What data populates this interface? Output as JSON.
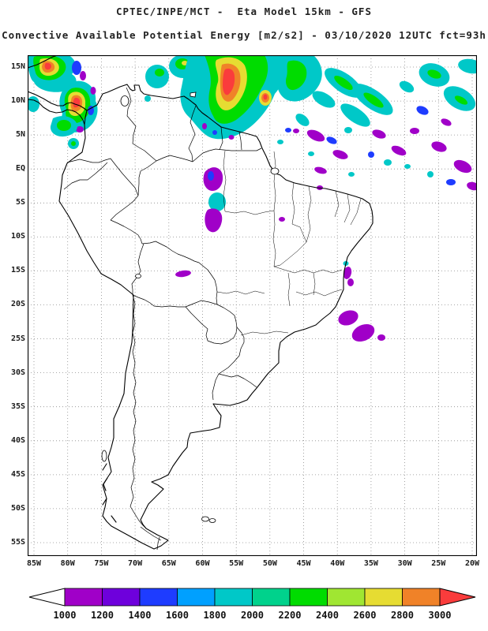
{
  "header": {
    "line1": "CPTEC/INPE/MCT -  Eta Model 15km - GFS",
    "line2": "Convective Available Potential Energy [m2/s2] - 03/10/2020 12UTC fct=93h"
  },
  "axes": {
    "lat_labels": [
      "15N",
      "10N",
      "5N",
      "EQ",
      "5S",
      "10S",
      "15S",
      "20S",
      "25S",
      "30S",
      "35S",
      "40S",
      "45S",
      "50S",
      "55S"
    ],
    "lon_labels": [
      "85W",
      "80W",
      "75W",
      "70W",
      "65W",
      "60W",
      "55W",
      "50W",
      "45W",
      "40W",
      "35W",
      "30W",
      "25W",
      "20W"
    ]
  },
  "colorbar": {
    "tick_labels": [
      "1000",
      "1200",
      "1400",
      "1600",
      "1800",
      "2000",
      "2200",
      "2400",
      "2600",
      "2800",
      "3000"
    ],
    "segment_colors": [
      "#A000C8",
      "#6E00DC",
      "#1E3CFF",
      "#00A0FF",
      "#00C8C8",
      "#00D28C",
      "#00DC00",
      "#A0E632",
      "#E6DC32",
      "#F08228"
    ],
    "left_arrow_color": "#FFFFFF",
    "right_arrow_color": "#FA3C3C"
  },
  "chart_data": {
    "type": "heatmap",
    "title": "Convective Available Potential Energy [m2/s2]",
    "source": "CPTEC/INPE/MCT - Eta Model 15km - GFS",
    "valid": "03/10/2020 12UTC fct=93h",
    "units": "m2/s2",
    "x_ticks": [
      "85W",
      "80W",
      "75W",
      "70W",
      "65W",
      "60W",
      "55W",
      "50W",
      "45W",
      "40W",
      "35W",
      "30W",
      "25W",
      "20W"
    ],
    "y_ticks": [
      "15N",
      "10N",
      "5N",
      "EQ",
      "5S",
      "10S",
      "15S",
      "20S",
      "25S",
      "30S",
      "35S",
      "40S",
      "45S",
      "50S",
      "55S"
    ],
    "levels": [
      1000,
      1200,
      1400,
      1600,
      1800,
      2000,
      2200,
      2400,
      2600,
      2800,
      3000
    ],
    "level_colors": [
      "#A000C8",
      "#6E00DC",
      "#1E3CFF",
      "#00A0FF",
      "#00C8C8",
      "#00D28C",
      "#00DC00",
      "#A0E632",
      "#E6DC32",
      "#F08228",
      "#FA3C3C"
    ],
    "high_cape_regions": [
      {
        "area": "Panama / NW Colombia coast (8N-15N, 85W-75W)",
        "peak": ">3000"
      },
      {
        "area": "E Venezuela / Guyanas / far N Brazil (0-12N, 66W-50W)",
        "peak": ">3000"
      },
      {
        "area": "Tropical North Atlantic ITCZ (0-12N, 50W-20W)",
        "peak": "1000-2600 scattered bands"
      },
      {
        "area": "Central Amazon near 60W, 4S-10S",
        "peak": "1000-1600 isolated"
      },
      {
        "area": "Atlantic near 35W, 12S-15S",
        "peak": "1000-1400 isolated"
      },
      {
        "area": "SE Brazil offshore 36W-33W, 21S-25S",
        "peak": "1000-1200 isolated"
      }
    ]
  }
}
